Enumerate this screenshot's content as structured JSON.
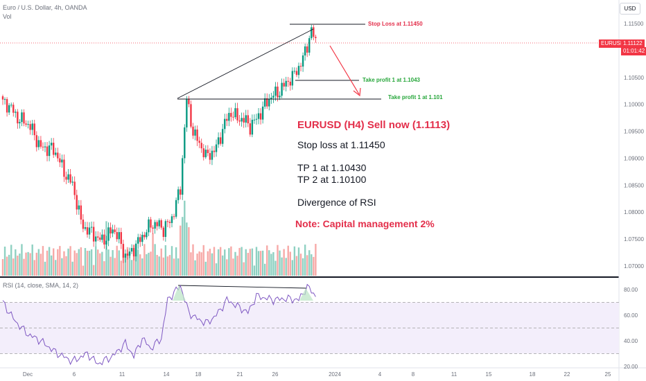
{
  "header": {
    "symbol_line": "Euro / U.S. Dollar, 4h, OANDA",
    "volume_label": "Vol",
    "rsi_label": "RSI (14, close, SMA, 14, 2)",
    "currency_button": "USD"
  },
  "price_tag": {
    "symbol": "EURUSD",
    "price": "1.11122",
    "countdown": "01:01:42"
  },
  "annotations": {
    "title": "EURUSD (H4) Sell now (1.1113)",
    "stop_loss": "Stop loss at 1.11450",
    "tp1": "TP 1 at 1.10430",
    "tp2": "TP 2 at 1.10100",
    "divergence": "Divergence of RSI",
    "note": "Note: Capital management 2%"
  },
  "levels": {
    "stop_loss": {
      "label": "Stop Loss at 1.11450",
      "value": 1.1145,
      "color": "#e32e4a"
    },
    "tp_a": {
      "label": "Take profit 1 at 1.1043",
      "value": 1.1043,
      "color": "#26a63a"
    },
    "tp_b": {
      "label": "Take profit 1 at 1.101",
      "value": 1.101,
      "color": "#26a63a"
    }
  },
  "colors": {
    "up": "#089981",
    "down": "#f23645",
    "vol_up": "#8fd1c2",
    "vol_down": "#f7a9a7",
    "rsi_line": "#7e57c2",
    "arrow": "#f23645"
  },
  "chart_data": {
    "type": "candlestick",
    "price_axis": {
      "ticks": [
        "1.11500",
        "1.11000",
        "1.10500",
        "1.10000",
        "1.09500",
        "1.09000",
        "1.08500",
        "1.08000",
        "1.07500",
        "1.07000"
      ],
      "range": [
        1.068,
        1.1175
      ]
    },
    "rsi_axis": {
      "ticks": [
        "80.00",
        "60.00",
        "40.00",
        "20.00"
      ],
      "range": [
        20,
        85
      ],
      "bands": [
        70,
        30
      ]
    },
    "x_axis_labels": [
      "Dec",
      "6",
      "11",
      "14",
      "18",
      "21",
      "26",
      "2024",
      "4",
      "8",
      "11",
      "15",
      "18",
      "22",
      "25"
    ],
    "current_price": 1.11122,
    "key_prices": [
      {
        "label": "start",
        "close": 1.1001
      },
      {
        "label": "low_dec6",
        "close": 1.0743
      },
      {
        "label": "breakout_dec14",
        "close": 1.1008
      },
      {
        "label": "pullback",
        "close": 1.0898
      },
      {
        "label": "last",
        "close": 1.11122
      }
    ]
  }
}
